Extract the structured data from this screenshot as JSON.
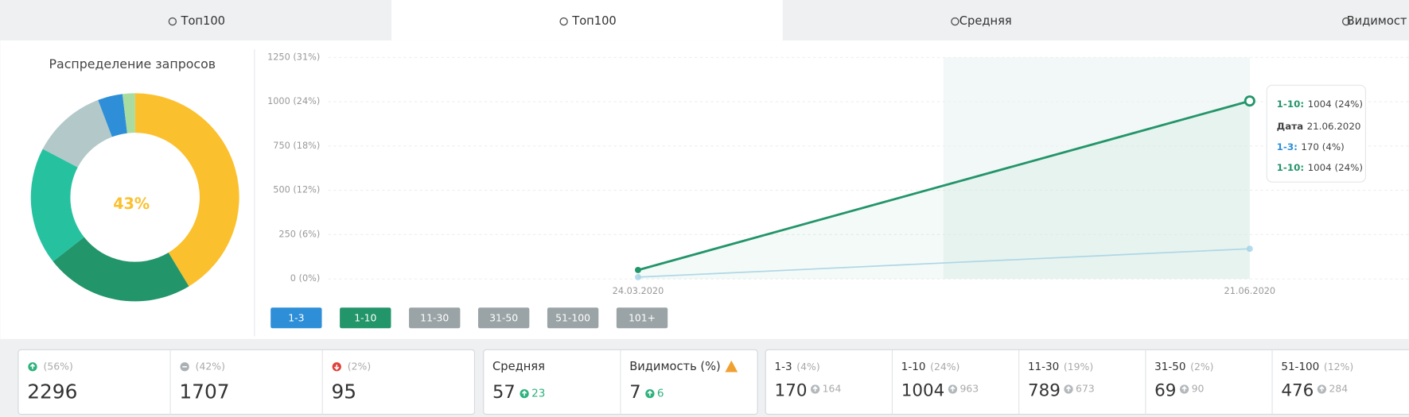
{
  "tabs": [
    {
      "label": "Топ100",
      "active": false
    },
    {
      "label": "Топ100",
      "active": true
    },
    {
      "label": "Средняя",
      "active": false
    },
    {
      "label": "Видимост",
      "active": false
    }
  ],
  "donut": {
    "title": "Распределение запросов",
    "center_label": "43%",
    "values": [
      43,
      24,
      19,
      12,
      4,
      2
    ],
    "colors": [
      "#fbc02d",
      "#23956a",
      "#26c2a0",
      "#b3c8c8",
      "#2e8fd8",
      "#a8dca0"
    ]
  },
  "chart": {
    "type": "line",
    "categories": [
      "24.03.2020",
      "21.06.2020"
    ],
    "ylim": [
      0,
      1250
    ],
    "yticks": [
      {
        "value": 0,
        "label": "0 (0%)"
      },
      {
        "value": 250,
        "label": "250 (6%)"
      },
      {
        "value": 500,
        "label": "500 (12%)"
      },
      {
        "value": 750,
        "label": "750 (18%)"
      },
      {
        "value": 1000,
        "label": "1000 (24%)"
      },
      {
        "value": 1250,
        "label": "1250 (31%)"
      }
    ],
    "series": [
      {
        "name": "1-10",
        "color": "#23956a",
        "values": [
          50,
          1004
        ]
      },
      {
        "name": "1-3",
        "color": "#b5dbee",
        "values": [
          10,
          170
        ]
      }
    ],
    "legend": [
      {
        "label": "1-3",
        "color": "#2e8fd8"
      },
      {
        "label": "1-10",
        "color": "#23956a"
      },
      {
        "label": "11-30",
        "color": "#9aa3a6"
      },
      {
        "label": "31-50",
        "color": "#9aa3a6"
      },
      {
        "label": "51-100",
        "color": "#9aa3a6"
      },
      {
        "label": "101+",
        "color": "#9aa3a6"
      }
    ],
    "tooltip": [
      {
        "label": "1-10:",
        "value": "1004 (24%)",
        "color": "#23956a"
      },
      {
        "label": "Дата",
        "value": "21.06.2020",
        "color": "#444444"
      },
      {
        "label": "1-3:",
        "value": "170 (4%)",
        "color": "#2e8fd8"
      },
      {
        "label": "1-10:",
        "value": "1004 (24%)",
        "color": "#23956a"
      }
    ]
  },
  "summary": [
    {
      "icon": "up",
      "pct": "(56%)",
      "value": 2296
    },
    {
      "icon": "same",
      "pct": "(42%)",
      "value": 1707
    },
    {
      "icon": "down",
      "pct": "(2%)",
      "value": 95
    }
  ],
  "averages": [
    {
      "label": "Средняя",
      "value": 57,
      "change": 23,
      "warning": false
    },
    {
      "label": "Видимость (%)",
      "value": 7,
      "change": 6,
      "warning": true
    }
  ],
  "positions": [
    {
      "label": "1-3",
      "pct": "(4%)",
      "value": 170,
      "previous": 164
    },
    {
      "label": "1-10",
      "pct": "(24%)",
      "value": 1004,
      "previous": 963
    },
    {
      "label": "11-30",
      "pct": "(19%)",
      "value": 789,
      "previous": 673
    },
    {
      "label": "31-50",
      "pct": "(2%)",
      "value": 69,
      "previous": 90
    },
    {
      "label": "51-100",
      "pct": "(12%)",
      "value": 476,
      "previous": 284
    }
  ]
}
